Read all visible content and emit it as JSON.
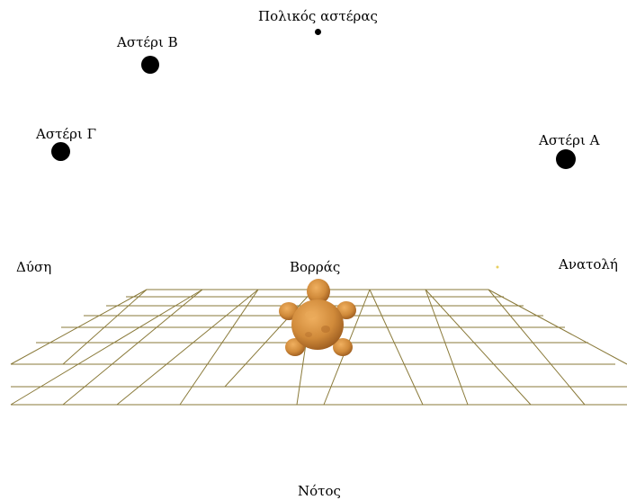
{
  "labels": {
    "polaris": "Πολικός αστέρας",
    "star_b": "Αστέρι Β",
    "star_g": "Αστέρι Γ",
    "star_a": "Αστέρι Α",
    "west": "Δύση",
    "north": "Βορράς",
    "east": "Ανατολή",
    "south": "Νότος"
  },
  "colors": {
    "grid": "#8a7a3a",
    "star": "#000000",
    "turtle_body": "#d08a3a",
    "turtle_dark": "#9a5a1e"
  },
  "icons": {
    "turtle": "turtle-icon",
    "star": "star-icon"
  }
}
